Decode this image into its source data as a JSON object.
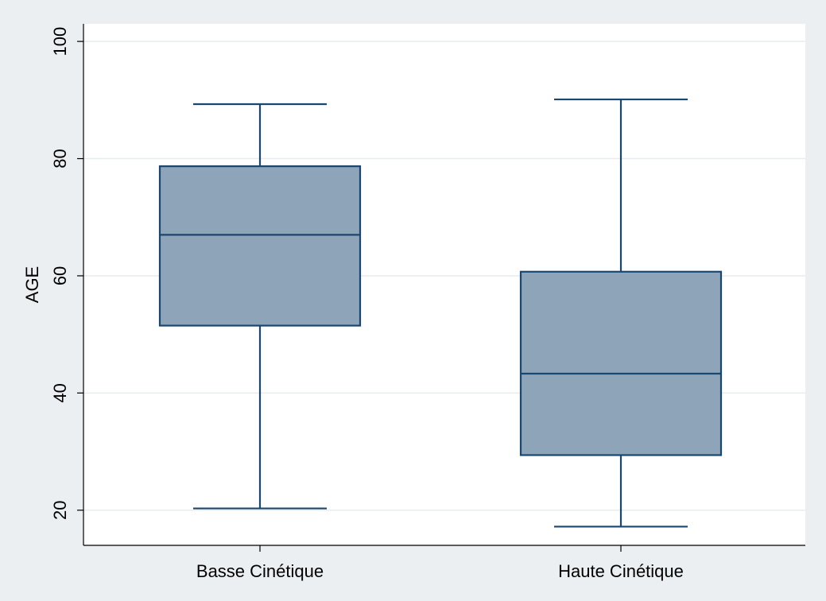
{
  "chart_data": {
    "type": "box",
    "title": "",
    "xlabel": "",
    "ylabel": "AGE",
    "ylim": [
      14,
      103
    ],
    "yticks": [
      20,
      40,
      60,
      80,
      100
    ],
    "grid": true,
    "categories": [
      "Basse Cinétique",
      "Haute Cinétique"
    ],
    "boxes": [
      {
        "category": "Basse Cinétique",
        "whisker_low": 20.3,
        "q1": 51.5,
        "median": 67.0,
        "q3": 78.7,
        "whisker_high": 89.3
      },
      {
        "category": "Haute Cinétique",
        "whisker_low": 17.2,
        "q1": 29.4,
        "median": 43.3,
        "q3": 60.7,
        "whisker_high": 90.1
      }
    ],
    "colors": {
      "box_fill": "#8ea4b8",
      "box_stroke": "#1a476f",
      "page_bg": "#ebeff2",
      "plot_bg": "#ffffff"
    }
  }
}
